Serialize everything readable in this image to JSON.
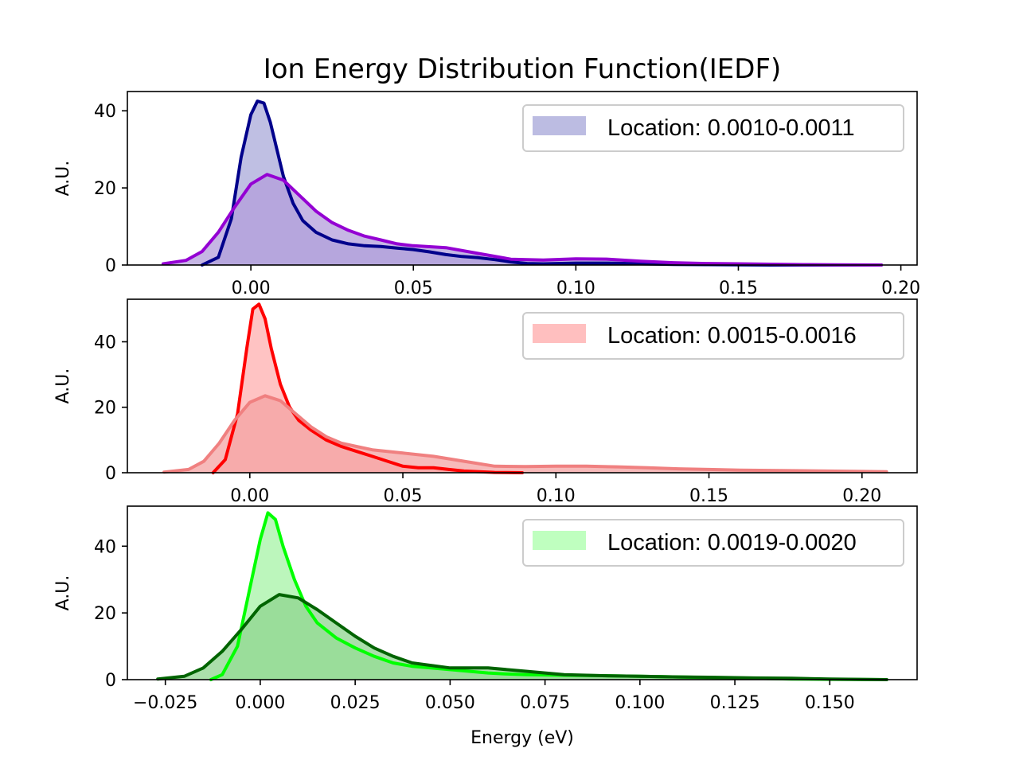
{
  "chart_data": {
    "title": "Ion Energy Distribution Function(IEDF)",
    "type": "area",
    "panels": [
      {
        "ylabel": "A.U.",
        "xlabel": "",
        "xlim": [
          -0.038,
          0.205
        ],
        "ylim": [
          0,
          45
        ],
        "xticks": [
          0.0,
          0.05,
          0.1,
          0.15,
          0.2
        ],
        "xtick_labels": [
          "0.00",
          "0.05",
          "0.10",
          "0.15",
          "0.20"
        ],
        "yticks": [
          0,
          20,
          40
        ],
        "ytick_labels": [
          "0",
          "20",
          "40"
        ],
        "legend": {
          "label": "Location: 0.0010-0.0011",
          "placement": "top-right",
          "swatch_color": "#bcbce2"
        },
        "series": [
          {
            "color": "#00008b",
            "fill": "#bcbce2",
            "x": [
              -0.015,
              -0.01,
              -0.006,
              -0.003,
              0.0,
              0.002,
              0.004,
              0.006,
              0.008,
              0.01,
              0.013,
              0.016,
              0.02,
              0.025,
              0.03,
              0.035,
              0.04,
              0.045,
              0.05,
              0.055,
              0.06,
              0.065,
              0.07,
              0.075,
              0.08,
              0.085,
              0.09,
              0.1,
              0.11,
              0.12,
              0.13,
              0.14,
              0.15,
              0.16,
              0.17,
              0.18,
              0.194
            ],
            "y": [
              0.0,
              2.0,
              12.0,
              28.0,
              39.0,
              42.5,
              42.0,
              37.0,
              30.0,
              23.0,
              16.0,
              11.5,
              8.5,
              6.5,
              5.5,
              5.0,
              4.8,
              4.4,
              4.0,
              3.4,
              2.7,
              2.2,
              1.9,
              1.4,
              0.8,
              0.4,
              0.3,
              0.5,
              0.5,
              0.3,
              0.15,
              0.1,
              0.05,
              0.0,
              0.0,
              0.0,
              0.0
            ]
          },
          {
            "color": "#9400d3",
            "fill": "#b39ddb",
            "x": [
              -0.027,
              -0.02,
              -0.015,
              -0.01,
              -0.005,
              0.0,
              0.005,
              0.01,
              0.015,
              0.02,
              0.025,
              0.03,
              0.035,
              0.04,
              0.045,
              0.05,
              0.06,
              0.07,
              0.08,
              0.09,
              0.1,
              0.11,
              0.12,
              0.13,
              0.14,
              0.15,
              0.16,
              0.17,
              0.18,
              0.194
            ],
            "y": [
              0.3,
              1.2,
              3.5,
              8.5,
              15.0,
              21.0,
              23.5,
              22.0,
              18.0,
              14.0,
              11.0,
              9.0,
              7.5,
              6.5,
              5.5,
              5.0,
              4.5,
              3.0,
              1.5,
              1.3,
              1.6,
              1.5,
              1.0,
              0.6,
              0.4,
              0.3,
              0.2,
              0.1,
              0.05,
              0.0
            ]
          }
        ]
      },
      {
        "ylabel": "A.U.",
        "xlabel": "",
        "xlim": [
          -0.04,
          0.218
        ],
        "ylim": [
          0,
          53
        ],
        "xticks": [
          0.0,
          0.05,
          0.1,
          0.15,
          0.2
        ],
        "xtick_labels": [
          "0.00",
          "0.05",
          "0.10",
          "0.15",
          "0.20"
        ],
        "yticks": [
          0,
          20,
          40
        ],
        "ytick_labels": [
          "0",
          "20",
          "40"
        ],
        "legend": {
          "label": "Location: 0.0015-0.0016",
          "placement": "top-right",
          "swatch_color": "#ffbfbf"
        },
        "series": [
          {
            "color": "#ff0000",
            "fill": "#ffc0c0",
            "x": [
              -0.012,
              -0.008,
              -0.004,
              -0.001,
              0.001,
              0.003,
              0.005,
              0.007,
              0.01,
              0.013,
              0.016,
              0.02,
              0.025,
              0.03,
              0.035,
              0.04,
              0.045,
              0.05,
              0.055,
              0.06,
              0.065,
              0.07,
              0.075,
              0.08,
              0.089
            ],
            "y": [
              0.0,
              4.0,
              18.0,
              38.0,
              50.0,
              51.5,
              47.0,
              38.0,
              27.0,
              20.0,
              16.0,
              13.0,
              10.0,
              8.0,
              6.5,
              5.0,
              3.5,
              2.0,
              1.5,
              1.5,
              1.0,
              0.5,
              0.3,
              0.1,
              0.0
            ]
          },
          {
            "color": "#f08080",
            "fill": "#f4a3a3",
            "x": [
              -0.028,
              -0.02,
              -0.015,
              -0.01,
              -0.005,
              0.0,
              0.005,
              0.01,
              0.015,
              0.02,
              0.025,
              0.03,
              0.04,
              0.05,
              0.06,
              0.07,
              0.08,
              0.09,
              0.1,
              0.11,
              0.12,
              0.13,
              0.14,
              0.15,
              0.16,
              0.18,
              0.2,
              0.208
            ],
            "y": [
              0.2,
              1.0,
              3.5,
              9.0,
              16.0,
              21.5,
              23.5,
              22.0,
              18.0,
              14.0,
              11.0,
              9.0,
              7.0,
              6.0,
              5.0,
              3.5,
              2.0,
              1.9,
              2.0,
              2.0,
              1.8,
              1.5,
              1.2,
              1.0,
              0.8,
              0.6,
              0.4,
              0.3
            ]
          }
        ]
      },
      {
        "ylabel": "A.U.",
        "xlabel": "Energy (eV)",
        "xlim": [
          -0.035,
          0.173
        ],
        "ylim": [
          0,
          52
        ],
        "xticks": [
          -0.025,
          0.0,
          0.025,
          0.05,
          0.075,
          0.1,
          0.125,
          0.15
        ],
        "xtick_labels": [
          "−0.025",
          "0.000",
          "0.025",
          "0.050",
          "0.075",
          "0.100",
          "0.125",
          "0.150"
        ],
        "yticks": [
          0,
          20,
          40
        ],
        "ytick_labels": [
          "0",
          "20",
          "40"
        ],
        "legend": {
          "label": "Location: 0.0019-0.0020",
          "placement": "top-right",
          "swatch_color": "#bfffbf"
        },
        "series": [
          {
            "color": "#00ff00",
            "fill": "#b8f5b8",
            "x": [
              -0.013,
              -0.01,
              -0.006,
              -0.003,
              0.0,
              0.002,
              0.004,
              0.006,
              0.009,
              0.012,
              0.015,
              0.02,
              0.025,
              0.03,
              0.035,
              0.04,
              0.045,
              0.05,
              0.055,
              0.06,
              0.065,
              0.07,
              0.08,
              0.09,
              0.1,
              0.11,
              0.12,
              0.13,
              0.14,
              0.15,
              0.165
            ],
            "y": [
              0.0,
              1.5,
              10.0,
              26.0,
              42.0,
              50.0,
              48.0,
              40.0,
              30.0,
              22.0,
              17.0,
              12.5,
              9.5,
              7.0,
              5.0,
              4.0,
              3.5,
              3.0,
              2.5,
              2.0,
              1.7,
              1.5,
              1.3,
              1.2,
              1.0,
              0.8,
              0.6,
              0.4,
              0.2,
              0.1,
              0.0
            ]
          },
          {
            "color": "#006400",
            "fill": "#8fd48f",
            "x": [
              -0.027,
              -0.02,
              -0.015,
              -0.01,
              -0.005,
              0.0,
              0.005,
              0.01,
              0.015,
              0.02,
              0.025,
              0.03,
              0.035,
              0.04,
              0.05,
              0.06,
              0.07,
              0.08,
              0.09,
              0.1,
              0.11,
              0.12,
              0.13,
              0.14,
              0.15,
              0.165
            ],
            "y": [
              0.2,
              1.0,
              3.5,
              8.5,
              15.0,
              22.0,
              25.5,
              24.5,
              21.0,
              17.0,
              13.0,
              9.5,
              7.0,
              5.0,
              3.5,
              3.5,
              2.5,
              1.5,
              1.2,
              1.0,
              0.8,
              0.7,
              0.5,
              0.4,
              0.2,
              0.0
            ]
          }
        ]
      }
    ]
  }
}
